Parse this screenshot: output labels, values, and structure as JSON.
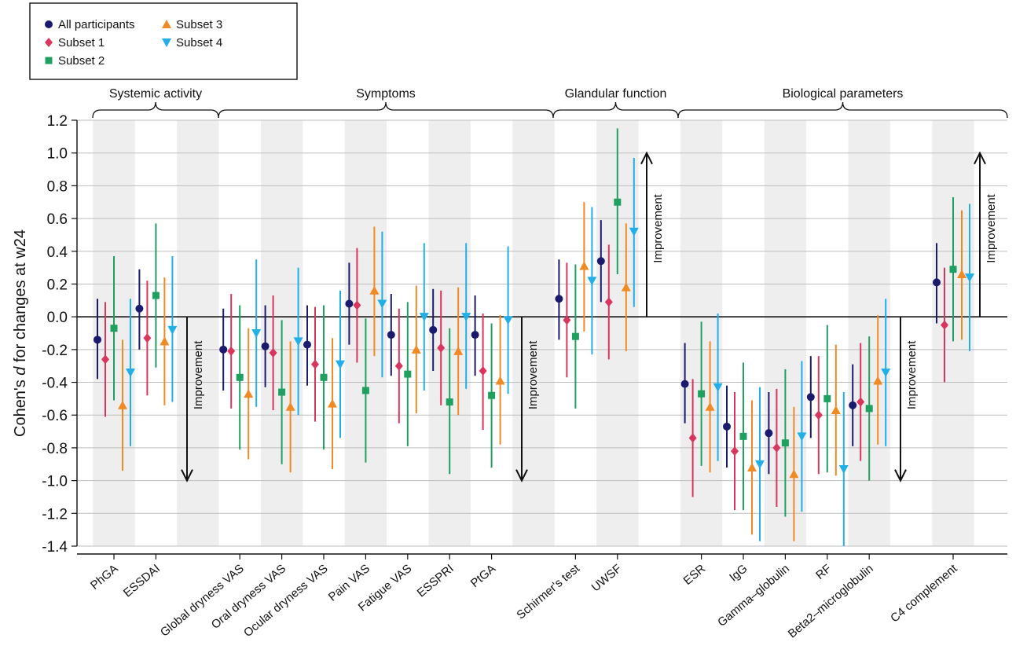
{
  "chart_data": {
    "type": "scatter",
    "ylabel": "Cohen's d for changes at w24",
    "ylim": [
      -1.4,
      1.2
    ],
    "yticks": [
      1.2,
      1.0,
      0.8,
      0.6,
      0.4,
      0.2,
      0.0,
      -0.2,
      -0.4,
      -0.6,
      -0.8,
      -1.0,
      -1.2,
      -1.4
    ],
    "grid": true,
    "legend_position": "top-left",
    "groups": [
      {
        "label": "Systemic activity",
        "categories": [
          "PhGA",
          "ESSDAI"
        ]
      },
      {
        "label": "Symptoms",
        "categories": [
          "Global dryness VAS",
          "Oral dryness VAS",
          "Ocular dryness VAS",
          "Pain VAS",
          "Fatigue VAS",
          "ESSPRI",
          "PtGA"
        ]
      },
      {
        "label": "Glandular function",
        "categories": [
          "Schirmer's test",
          "UWSF"
        ]
      },
      {
        "label": "Biological parameters",
        "categories": [
          "ESR",
          "IgG",
          "Gamma–globulin",
          "RF",
          "Beta2–microglobulin",
          "C4 complement"
        ]
      }
    ],
    "categories": [
      "PhGA",
      "ESSDAI",
      "Global dryness VAS",
      "Oral dryness VAS",
      "Ocular dryness VAS",
      "Pain VAS",
      "Fatigue VAS",
      "ESSPRI",
      "PtGA",
      "Schirmer's test",
      "UWSF",
      "ESR",
      "IgG",
      "Gamma–globulin",
      "RF",
      "Beta2–microglobulin",
      "C4 complement"
    ],
    "series": [
      {
        "name": "All participants",
        "color": "#1a1a6e",
        "marker": "circle",
        "values": [
          -0.14,
          0.05,
          -0.2,
          -0.18,
          -0.17,
          0.08,
          -0.11,
          -0.08,
          -0.11,
          0.11,
          0.34,
          -0.41,
          -0.67,
          -0.71,
          -0.49,
          -0.54,
          0.21
        ],
        "lower": [
          -0.38,
          -0.2,
          -0.45,
          -0.43,
          -0.42,
          -0.17,
          -0.36,
          -0.33,
          -0.36,
          -0.14,
          0.09,
          -0.65,
          -0.92,
          -0.96,
          -0.74,
          -0.79,
          -0.04
        ],
        "upper": [
          0.11,
          0.29,
          0.05,
          0.07,
          0.07,
          0.33,
          0.14,
          0.17,
          0.13,
          0.35,
          0.59,
          -0.16,
          -0.42,
          -0.46,
          -0.24,
          -0.29,
          0.45
        ]
      },
      {
        "name": "Subset 1",
        "color": "#d9365e",
        "marker": "diamond",
        "values": [
          -0.26,
          -0.13,
          -0.21,
          -0.22,
          -0.29,
          0.07,
          -0.3,
          -0.19,
          -0.33,
          -0.02,
          0.09,
          -0.74,
          -0.82,
          -0.8,
          -0.6,
          -0.52,
          -0.05
        ],
        "lower": [
          -0.61,
          -0.48,
          -0.56,
          -0.57,
          -0.64,
          -0.28,
          -0.65,
          -0.54,
          -0.69,
          -0.37,
          -0.26,
          -1.1,
          -1.18,
          -1.16,
          -0.96,
          -0.88,
          -0.4
        ],
        "upper": [
          0.09,
          0.22,
          0.14,
          0.13,
          0.06,
          0.42,
          0.05,
          0.16,
          0.02,
          0.33,
          0.44,
          -0.38,
          -0.46,
          -0.44,
          -0.24,
          -0.16,
          0.3
        ]
      },
      {
        "name": "Subset 2",
        "color": "#20a060",
        "marker": "square",
        "values": [
          -0.07,
          0.13,
          -0.37,
          -0.46,
          -0.37,
          -0.45,
          -0.35,
          -0.52,
          -0.48,
          -0.12,
          0.7,
          -0.47,
          -0.73,
          -0.77,
          -0.5,
          -0.56,
          0.29
        ],
        "lower": [
          -0.51,
          -0.31,
          -0.81,
          -0.9,
          -0.81,
          -0.89,
          -0.79,
          -0.96,
          -0.92,
          -0.56,
          0.26,
          -0.91,
          -1.18,
          -1.22,
          -0.95,
          -1.0,
          -0.15
        ],
        "upper": [
          0.37,
          0.57,
          0.07,
          -0.02,
          0.07,
          -0.01,
          0.09,
          -0.07,
          -0.04,
          0.32,
          1.15,
          -0.03,
          -0.28,
          -0.32,
          -0.05,
          -0.12,
          0.73
        ]
      },
      {
        "name": "Subset 3",
        "color": "#f08a24",
        "marker": "triangle-up",
        "values": [
          -0.54,
          -0.15,
          -0.47,
          -0.55,
          -0.53,
          0.16,
          -0.2,
          -0.21,
          -0.39,
          0.31,
          0.18,
          -0.55,
          -0.92,
          -0.96,
          -0.57,
          -0.39,
          0.26
        ],
        "lower": [
          -0.94,
          -0.54,
          -0.87,
          -0.95,
          -0.93,
          -0.24,
          -0.59,
          -0.6,
          -0.78,
          -0.09,
          -0.21,
          -0.95,
          -1.33,
          -1.37,
          -0.97,
          -0.78,
          -0.14
        ],
        "upper": [
          -0.14,
          0.24,
          -0.07,
          -0.15,
          -0.13,
          0.55,
          0.19,
          0.18,
          0.01,
          0.7,
          0.57,
          -0.15,
          -0.51,
          -0.55,
          -0.17,
          0.01,
          0.65
        ]
      },
      {
        "name": "Subset 4",
        "color": "#22aee6",
        "marker": "triangle-down",
        "values": [
          -0.34,
          -0.08,
          -0.1,
          -0.15,
          -0.29,
          0.08,
          0.0,
          0.0,
          -0.02,
          0.22,
          0.52,
          -0.43,
          -0.9,
          -0.73,
          -0.93,
          -0.34,
          0.24
        ],
        "lower": [
          -0.79,
          -0.52,
          -0.55,
          -0.6,
          -0.74,
          -0.37,
          -0.45,
          -0.44,
          -0.47,
          -0.23,
          0.06,
          -0.88,
          -1.37,
          -1.19,
          -1.4,
          -0.79,
          -0.21
        ],
        "upper": [
          0.11,
          0.37,
          0.35,
          0.3,
          0.16,
          0.52,
          0.45,
          0.45,
          0.43,
          0.67,
          0.97,
          0.02,
          -0.43,
          -0.27,
          -0.46,
          0.11,
          0.69
        ]
      }
    ],
    "annotations": [
      {
        "text": "Improvement",
        "direction": "down",
        "group": "Systemic activity"
      },
      {
        "text": "Improvement",
        "direction": "down",
        "group": "Symptoms"
      },
      {
        "text": "Improvement",
        "direction": "up",
        "group": "Glandular function"
      },
      {
        "text": "Improvement",
        "direction": "down",
        "group": "Biological parameters"
      },
      {
        "text": "Improvement",
        "direction": "up",
        "group": "C4 complement"
      }
    ]
  }
}
